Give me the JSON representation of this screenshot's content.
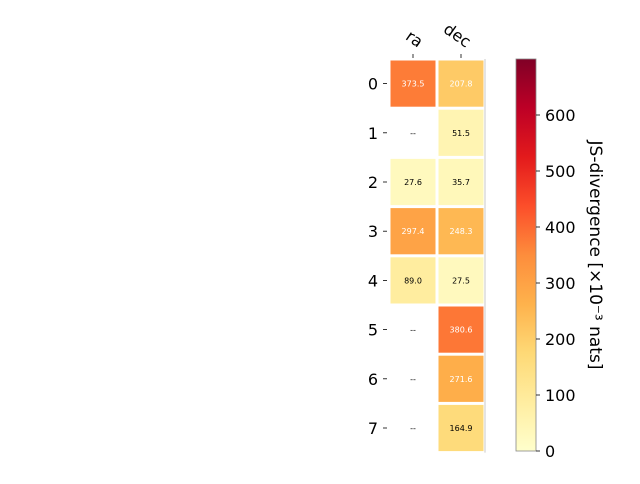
{
  "chart_data": {
    "type": "heatmap",
    "columns": [
      "ra",
      "dec"
    ],
    "rows": [
      "0",
      "1",
      "2",
      "3",
      "4",
      "5",
      "6",
      "7"
    ],
    "values": [
      [
        373.5,
        207.8
      ],
      [
        null,
        51.5
      ],
      [
        27.6,
        35.7
      ],
      [
        297.4,
        248.3
      ],
      [
        89.0,
        27.5
      ],
      [
        null,
        380.6
      ],
      [
        null,
        271.6
      ],
      [
        null,
        164.9
      ]
    ],
    "missing_label": "--",
    "colorbar": {
      "label": "JS-divergence [×10⁻³ nats]",
      "range": [
        0,
        700
      ],
      "ticks": [
        "0",
        "100",
        "200",
        "300",
        "400",
        "500",
        "600"
      ],
      "colormap": "YlOrRd"
    }
  }
}
